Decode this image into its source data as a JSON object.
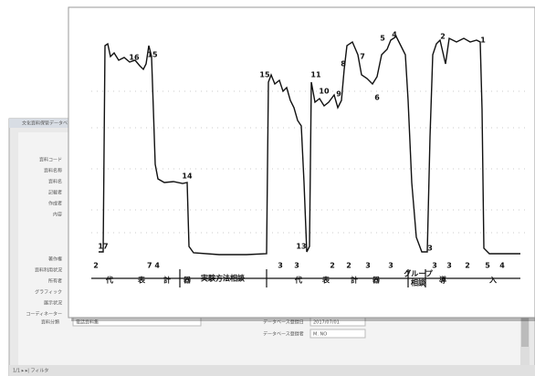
{
  "window": {
    "title": "文化資料保管データベース",
    "upper_fields": [
      "資料コード",
      "資料名称",
      "資料名",
      "記載者",
      "作成者",
      "内容"
    ],
    "lower_fields": [
      "著作権",
      "資料利用状況",
      "所有者",
      "グラフィック",
      "展示状況",
      "コーディネーター"
    ],
    "category_label": "資料分類",
    "category_value": "電話資料集",
    "db_date_label": "データベース登録日",
    "db_date": "2017/07/01",
    "db_user_label": "データベース登録者",
    "db_user": "M. NO",
    "status": "1/1 ▸ ▸|  フィルタ"
  },
  "scan": {
    "peak_labels": [
      "16",
      "15",
      "14",
      "17",
      "15",
      "13",
      "11",
      "10",
      "9",
      "8",
      "7",
      "6",
      "5",
      "4",
      "3",
      "2",
      "1"
    ],
    "bottom_numbers": [
      "2",
      "7 4",
      "3",
      "3",
      "2",
      "2",
      "3",
      "3",
      "3",
      "3",
      "2",
      "5",
      "4"
    ],
    "captions": [
      "代",
      "表",
      "計",
      "器",
      "実験方法相談",
      "代",
      "表",
      "計",
      "器",
      "グループ",
      "相談",
      "導",
      "入"
    ]
  }
}
